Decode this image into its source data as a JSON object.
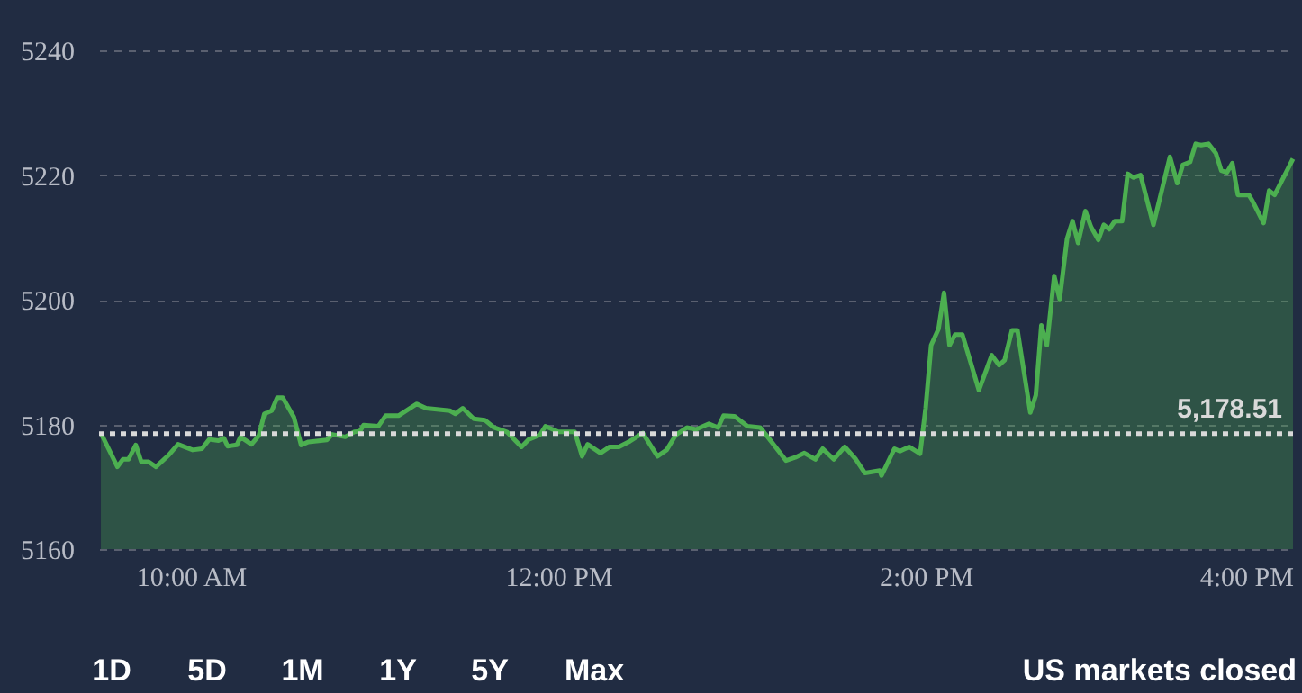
{
  "chart_data": {
    "type": "area",
    "x": [
      9.51,
      9.6,
      9.63,
      9.66,
      9.7,
      9.73,
      9.77,
      9.81,
      9.88,
      9.93,
      10.01,
      10.06,
      10.1,
      10.15,
      10.18,
      10.2,
      10.25,
      10.27,
      10.33,
      10.37,
      10.4,
      10.44,
      10.47,
      10.5,
      10.56,
      10.6,
      10.64,
      10.74,
      10.77,
      10.84,
      10.89,
      10.92,
      10.94,
      11.02,
      11.06,
      11.13,
      11.23,
      11.28,
      11.41,
      11.44,
      11.48,
      11.54,
      11.6,
      11.65,
      11.72,
      11.8,
      11.84,
      11.9,
      11.93,
      12.0,
      12.09,
      12.13,
      12.16,
      12.23,
      12.28,
      12.33,
      12.39,
      12.46,
      12.54,
      12.59,
      12.64,
      12.7,
      12.75,
      12.82,
      12.87,
      12.9,
      12.96,
      13.03,
      13.1,
      13.14,
      13.24,
      13.29,
      13.34,
      13.4,
      13.44,
      13.5,
      13.56,
      13.62,
      13.67,
      13.75,
      13.76,
      13.83,
      13.86,
      13.91,
      13.97,
      14.0,
      14.03,
      14.07,
      14.1,
      14.13,
      14.16,
      14.2,
      14.29,
      14.34,
      14.36,
      14.4,
      14.43,
      14.47,
      14.5,
      14.57,
      14.6,
      14.63,
      14.66,
      14.7,
      14.73,
      14.77,
      14.8,
      14.83,
      14.87,
      14.9,
      14.94,
      14.97,
      15.0,
      15.03,
      15.07,
      15.1,
      15.13,
      15.17,
      15.24,
      15.33,
      15.37,
      15.4,
      15.44,
      15.47,
      15.5,
      15.54,
      15.58,
      15.61,
      15.64,
      15.67,
      15.7,
      15.76,
      15.78,
      15.84,
      15.87,
      15.9,
      15.95,
      16.0
    ],
    "series": [
      {
        "color": "#4caf50",
        "values": [
          5178.6,
          5173.2,
          5174.4,
          5174.4,
          5176.7,
          5174.0,
          5174.0,
          5173.2,
          5175.1,
          5176.8,
          5175.9,
          5176.1,
          5177.6,
          5177.4,
          5177.8,
          5176.5,
          5176.7,
          5178.0,
          5176.8,
          5178.2,
          5181.7,
          5182.2,
          5184.3,
          5184.3,
          5181.2,
          5176.7,
          5177.2,
          5177.5,
          5178.4,
          5178.0,
          5178.8,
          5178.9,
          5179.9,
          5179.7,
          5181.4,
          5181.4,
          5183.3,
          5182.6,
          5182.2,
          5181.7,
          5182.6,
          5180.9,
          5180.7,
          5179.5,
          5178.8,
          5176.4,
          5177.6,
          5178.3,
          5179.7,
          5178.8,
          5178.8,
          5174.9,
          5176.8,
          5175.4,
          5176.4,
          5176.4,
          5177.3,
          5178.6,
          5174.9,
          5175.9,
          5178.3,
          5179.5,
          5179.2,
          5180.1,
          5179.5,
          5181.4,
          5181.3,
          5179.7,
          5179.5,
          5178.0,
          5174.2,
          5174.7,
          5175.4,
          5174.4,
          5176.1,
          5174.4,
          5176.4,
          5174.4,
          5172.2,
          5172.6,
          5171.8,
          5176.1,
          5175.7,
          5176.4,
          5175.3,
          5182.6,
          5192.7,
          5195.3,
          5201.1,
          5192.7,
          5194.4,
          5194.4,
          5185.5,
          5189.5,
          5191.1,
          5189.5,
          5190.3,
          5195.1,
          5195.1,
          5181.9,
          5184.7,
          5195.9,
          5192.7,
          5203.8,
          5200.1,
          5209.8,
          5212.6,
          5209.1,
          5214.2,
          5211.7,
          5209.6,
          5212.0,
          5211.3,
          5212.6,
          5212.6,
          5220.2,
          5219.6,
          5220.0,
          5212.0,
          5222.9,
          5218.7,
          5221.6,
          5222.1,
          5225.0,
          5224.8,
          5225.0,
          5223.5,
          5220.7,
          5220.4,
          5221.9,
          5216.8,
          5216.8,
          5215.8,
          5212.3,
          5217.5,
          5216.8,
          5219.7,
          5222.6
        ]
      }
    ],
    "xlim": [
      9.5,
      16
    ],
    "xticks": [
      {
        "value": 10,
        "label": "10:00 AM"
      },
      {
        "value": 12,
        "label": "12:00 PM"
      },
      {
        "value": 14,
        "label": "2:00 PM"
      },
      {
        "value": 16,
        "label": "4:00 PM"
      }
    ],
    "ylim": [
      5160,
      5240
    ],
    "yticks": [
      5160,
      5180,
      5200,
      5220,
      5240
    ],
    "grid": "y",
    "marker": "none",
    "line_style": "solid",
    "ref_lines": [
      {
        "axis": "y",
        "value": 5178.51,
        "label": "5,178.51",
        "color": "#d9d9d9",
        "line_style": "dotted"
      }
    ],
    "annotations": [
      "1D",
      "5D",
      "1M",
      "1Y",
      "5Y",
      "Max",
      "US markets closed"
    ]
  }
}
